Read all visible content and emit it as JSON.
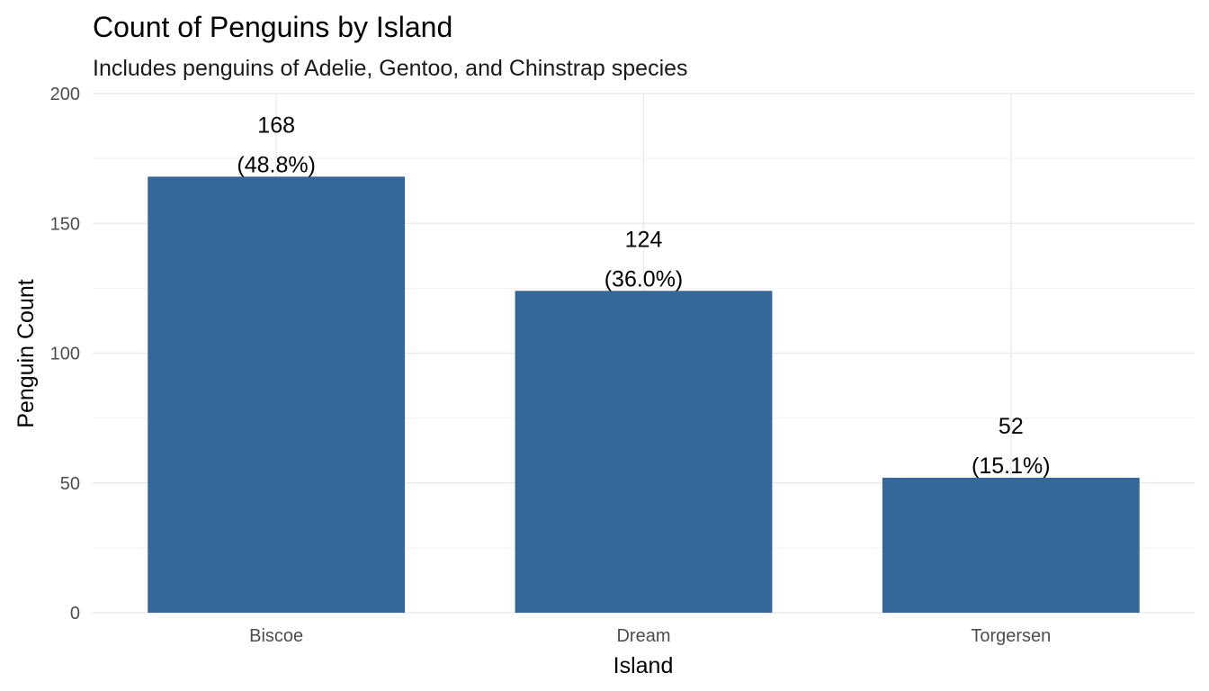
{
  "chart_data": {
    "type": "bar",
    "title": "Count of Penguins by Island",
    "subtitle": "Includes penguins of Adelie, Gentoo, and Chinstrap species",
    "xlabel": "Island",
    "ylabel": "Penguin Count",
    "categories": [
      "Biscoe",
      "Dream",
      "Torgersen"
    ],
    "values": [
      168,
      124,
      52
    ],
    "percent_labels": [
      "(48.8%)",
      "(36.0%)",
      "(15.1%)"
    ],
    "count_labels": [
      "168",
      "124",
      "52"
    ],
    "ylim": [
      0,
      200
    ],
    "yticks": [
      0,
      50,
      100,
      150,
      200
    ],
    "ytick_labels": [
      "0",
      "50",
      "100",
      "150",
      "200"
    ],
    "grid": true,
    "legend": "none",
    "bar_color": "#35689A"
  }
}
